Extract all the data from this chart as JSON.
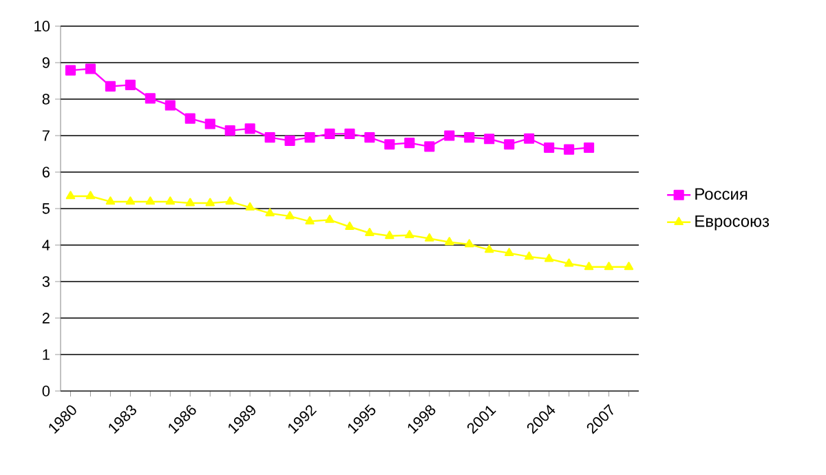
{
  "chart_data": {
    "type": "line",
    "categories": [
      "1980",
      null,
      null,
      "1983",
      null,
      null,
      "1986",
      null,
      null,
      "1989",
      null,
      null,
      "1992",
      null,
      null,
      "1995",
      null,
      null,
      "1998",
      null,
      null,
      "2001",
      null,
      null,
      "2004",
      null,
      null,
      "2007",
      null
    ],
    "series": [
      {
        "name": "Россия",
        "color": "#ff00ff",
        "marker": "square",
        "values": [
          8.79,
          8.83,
          8.35,
          8.39,
          8.02,
          7.83,
          7.47,
          7.32,
          7.14,
          7.19,
          6.95,
          6.86,
          6.95,
          7.05,
          7.05,
          6.95,
          6.76,
          6.8,
          6.7,
          7.0,
          6.95,
          6.91,
          6.76,
          6.92,
          6.67,
          6.62,
          6.67,
          null,
          null
        ]
      },
      {
        "name": "Евросоюз",
        "color": "#ffff00",
        "marker": "triangle",
        "values": [
          5.34,
          5.34,
          5.19,
          5.19,
          5.19,
          5.19,
          5.15,
          5.15,
          5.19,
          5.03,
          4.87,
          4.79,
          4.65,
          4.69,
          4.5,
          4.33,
          4.25,
          4.27,
          4.18,
          4.08,
          4.02,
          3.87,
          3.78,
          3.68,
          3.62,
          3.49,
          3.4,
          3.4,
          3.4
        ]
      }
    ],
    "ylim": [
      0,
      10
    ],
    "yticks": [
      0,
      1,
      2,
      3,
      4,
      5,
      6,
      7,
      8,
      9,
      10
    ],
    "grid": "y",
    "legend": "right",
    "line_style": "solid"
  }
}
